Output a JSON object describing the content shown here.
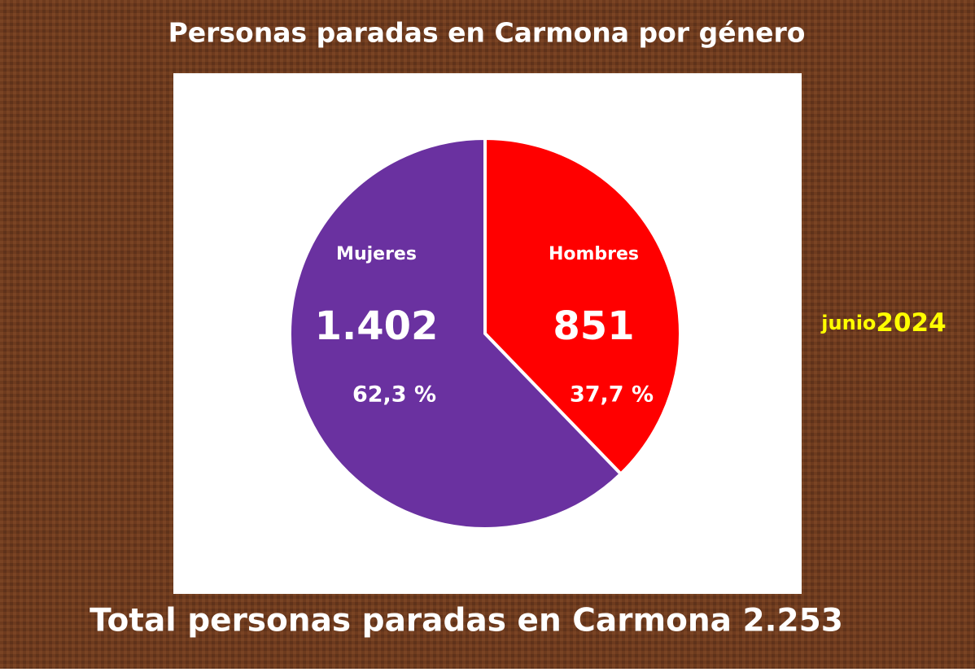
{
  "chart_data": {
    "type": "pie",
    "title": "Personas paradas en Carmona por género",
    "categories": [
      "Hombres",
      "Mujeres"
    ],
    "values": [
      851,
      1402
    ],
    "value_labels": [
      "851",
      "1.402"
    ],
    "percents": [
      37.7,
      62.3
    ],
    "percent_labels": [
      "37,7 %",
      "62,3 %"
    ],
    "colors": [
      "#ff0000",
      "#6a31a0"
    ],
    "footer": "Total personas paradas en Carmona 2.253",
    "date": {
      "month": "junio",
      "year": "2024"
    }
  }
}
